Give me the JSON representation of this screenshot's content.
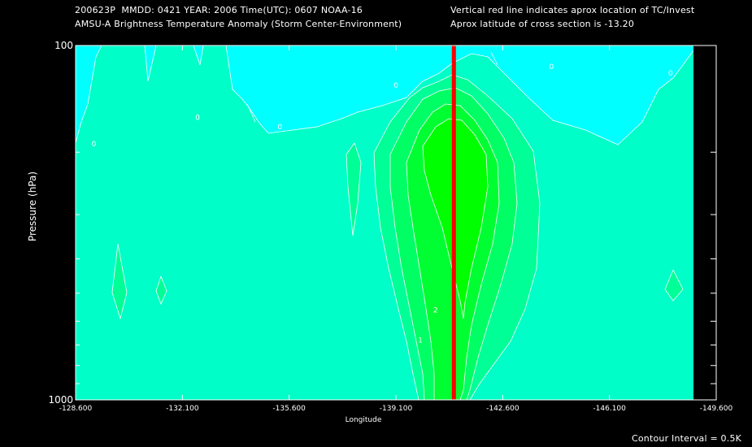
{
  "header": {
    "line1_left": "200623P  MMDD: 0421 YEAR: 2006 Time(UTC): 0607 NOAA-16",
    "line2_left": "AMSU-A Brightness Temperature Anomaly (Storm Center-Environment)",
    "line1_right": "Vertical red line indicates aprox location of TC/Invest",
    "line2_right": "Aprox latitude of cross section is -13.20"
  },
  "footer": {
    "contour_interval": "Contour Interval = 0.5K"
  },
  "colors": {
    "background": "#000000",
    "cyan": "#00ffff",
    "level1": "#00ffc8",
    "level2": "#00ff96",
    "level3": "#00ff64",
    "level4": "#00ff32",
    "level5": "#00ff00",
    "storm_line": "#ff0000",
    "contour": "#ffffff"
  },
  "chart_data": {
    "type": "heatmap",
    "title": "AMSU-A Brightness Temperature Anomaly (Storm Center-Environment)",
    "xlabel": "Longitude",
    "ylabel": "Pressure (hPa)",
    "x_ticks": [
      "-128.600",
      "-132.100",
      "-135.600",
      "-139.100",
      "-142.600",
      "-146.100",
      "-149.600"
    ],
    "x_tick_values": [
      -128.6,
      -132.1,
      -135.6,
      -139.1,
      -142.6,
      -146.1,
      -149.6
    ],
    "y_ticks": [
      "100",
      "1000"
    ],
    "y_scale": "log",
    "y_range": [
      1000,
      100
    ],
    "x_range": [
      -128.6,
      -149.6
    ],
    "storm_longitude": -141.0,
    "contour_interval": 0.5,
    "contour_labels": [
      {
        "text": "0",
        "lon": -139.1,
        "p": 130
      },
      {
        "text": "0",
        "lon": -132.6,
        "p": 160
      },
      {
        "text": "0",
        "lon": -144.2,
        "p": 115
      },
      {
        "text": "0",
        "lon": -148.1,
        "p": 120
      },
      {
        "text": "0",
        "lon": -129.2,
        "p": 190
      },
      {
        "text": "0",
        "lon": -135.3,
        "p": 170
      },
      {
        "text": "1",
        "lon": -139.9,
        "p": 680
      },
      {
        "text": "2",
        "lon": -140.4,
        "p": 560
      }
    ],
    "anomaly_core": {
      "max_level": 2.5,
      "max_pressure_hPa": 250
    }
  }
}
